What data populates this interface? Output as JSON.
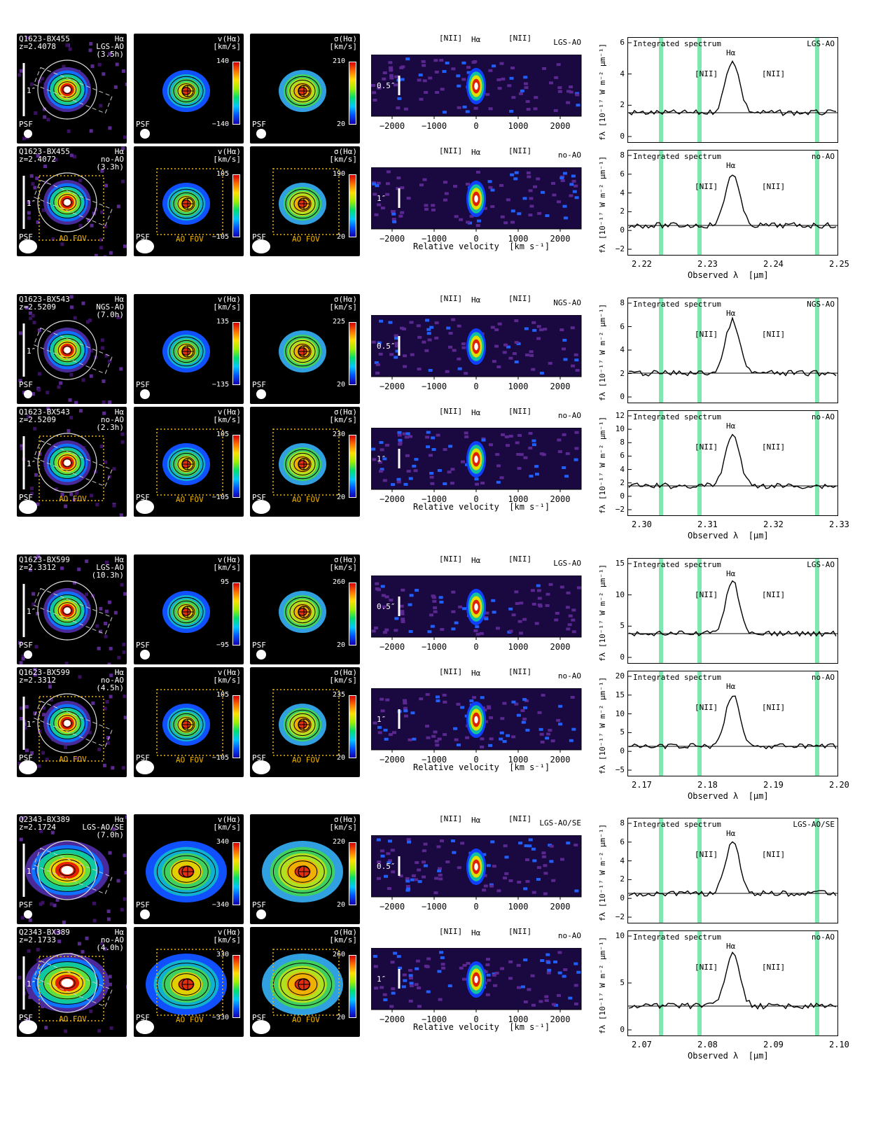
{
  "rows": [
    {
      "target": "Q1623-BX455",
      "obs": [
        {
          "z": "z=2.4078",
          "mode": "LGS-AO",
          "time": "(3.5h)",
          "ao": true,
          "vmax": "140",
          "vmin": "−140",
          "smax": "210",
          "smin": "20",
          "scale": "0.5″",
          "line_mode": "LGS-AO",
          "spec_mode": "LGS-AO",
          "yticks": [
            "0",
            "2",
            "4",
            "6"
          ]
        },
        {
          "z": "z=2.4072",
          "mode": "no-AO",
          "time": "(3.3h)",
          "ao": false,
          "vmax": "105",
          "vmin": "−105",
          "smax": "190",
          "smin": "20",
          "scale": "1″",
          "line_mode": "no-AO",
          "spec_mode": "no-AO",
          "yticks": [
            "−2",
            "0",
            "2",
            "4",
            "6",
            "8"
          ]
        }
      ],
      "xticks": [
        "2.22",
        "2.23",
        "2.24",
        "2.25"
      ]
    },
    {
      "target": "Q1623-BX543",
      "obs": [
        {
          "z": "z=2.5209",
          "mode": "NGS-AO",
          "time": "(7.0h)",
          "ao": true,
          "vmax": "135",
          "vmin": "−135",
          "smax": "225",
          "smin": "20",
          "scale": "0.5″",
          "line_mode": "NGS-AO",
          "spec_mode": "NGS-AO",
          "yticks": [
            "0",
            "2",
            "4",
            "6",
            "8"
          ]
        },
        {
          "z": "z=2.5209",
          "mode": "no-AO",
          "time": "(2.3h)",
          "ao": false,
          "vmax": "105",
          "vmin": "−105",
          "smax": "230",
          "smin": "20",
          "scale": "1″",
          "line_mode": "no-AO",
          "spec_mode": "no-AO",
          "yticks": [
            "−2",
            "0",
            "2",
            "4",
            "6",
            "8",
            "10",
            "12"
          ]
        }
      ],
      "xticks": [
        "2.30",
        "2.31",
        "2.32",
        "2.33"
      ]
    },
    {
      "target": "Q1623-BX599",
      "obs": [
        {
          "z": "z=2.3312",
          "mode": "LGS-AO",
          "time": "(10.3h)",
          "ao": true,
          "vmax": "95",
          "vmin": "−95",
          "smax": "260",
          "smin": "20",
          "scale": "0.5″",
          "line_mode": "LGS-AO",
          "spec_mode": "LGS-AO",
          "yticks": [
            "0",
            "5",
            "10",
            "15"
          ]
        },
        {
          "z": "z=2.3312",
          "mode": "no-AO",
          "time": "(4.5h)",
          "ao": false,
          "vmax": "105",
          "vmin": "−105",
          "smax": "235",
          "smin": "20",
          "scale": "1″",
          "line_mode": "no-AO",
          "spec_mode": "no-AO",
          "yticks": [
            "−5",
            "0",
            "5",
            "10",
            "15",
            "20"
          ]
        }
      ],
      "xticks": [
        "2.17",
        "2.18",
        "2.19",
        "2.20"
      ]
    },
    {
      "target": "Q2343-BX389",
      "obs": [
        {
          "z": "z=2.1724",
          "mode": "LGS-AO/SE",
          "time": "(7.0h)",
          "ao": true,
          "vmax": "340",
          "vmin": "−340",
          "smax": "220",
          "smin": "20",
          "scale": "0.5″",
          "line_mode": "LGS-AO/SE",
          "spec_mode": "LGS-AO/SE",
          "yticks": [
            "−2",
            "0",
            "2",
            "4",
            "6",
            "8"
          ]
        },
        {
          "z": "z=2.1733",
          "mode": "no-AO",
          "time": "(4.0h)",
          "ao": false,
          "vmax": "330",
          "vmin": "−330",
          "smax": "260",
          "smin": "20",
          "scale": "1″",
          "line_mode": "no-AO",
          "spec_mode": "no-AO",
          "yticks": [
            "0",
            "5",
            "10"
          ]
        }
      ],
      "xticks": [
        "2.07",
        "2.08",
        "2.09",
        "2.10"
      ]
    }
  ],
  "labels": {
    "halpha": "Hα",
    "nii": "[NII]",
    "one_arcsec": "1″",
    "psf": "PSF",
    "ao_fov": "AO FOV",
    "vel_title": "v(Hα)",
    "sig_title": "σ(Hα)",
    "kms": "[km/s]",
    "integrated": "Integrated spectrum",
    "vel_axis": "Relative velocity  [km s⁻¹]",
    "lam_axis": "Observed λ  [μm]",
    "flux_axis": "fλ [10⁻¹⁷ W m⁻² μm⁻¹]",
    "vel_ticks": [
      "−2000",
      "−1000",
      "0",
      "1000",
      "2000"
    ]
  }
}
